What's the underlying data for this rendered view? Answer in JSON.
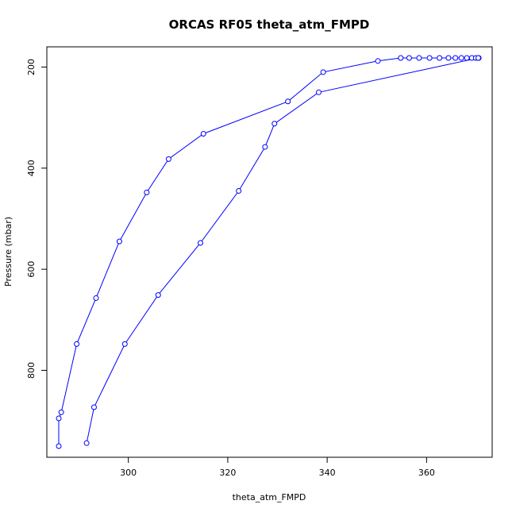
{
  "chart_data": {
    "type": "line",
    "title": "ORCAS RF05 theta_atm_FMPD",
    "xlabel": "theta_atm_FMPD",
    "ylabel": "Pressure (mbar)",
    "xlim": [
      283.6,
      373.2
    ],
    "ylim": [
      972,
      160
    ],
    "y_reversed": true,
    "xticks": [
      300,
      320,
      340,
      360
    ],
    "yticks": [
      200,
      400,
      600,
      800
    ],
    "grid": false,
    "series": [
      {
        "color": "#0000ff",
        "marker": "open-circle",
        "line": true,
        "points": [
          [
            286.0,
            950
          ],
          [
            286.0,
            895
          ],
          [
            286.5,
            883
          ],
          [
            289.6,
            748
          ],
          [
            293.5,
            657
          ],
          [
            298.2,
            545
          ],
          [
            303.7,
            448
          ],
          [
            308.1,
            382
          ],
          [
            315.1,
            332
          ],
          [
            332.1,
            268
          ],
          [
            339.2,
            210
          ],
          [
            350.2,
            188
          ],
          [
            354.8,
            182
          ],
          [
            356.5,
            182
          ],
          [
            358.5,
            182
          ],
          [
            360.6,
            182
          ],
          [
            362.6,
            182
          ],
          [
            364.4,
            182
          ],
          [
            365.8,
            182
          ],
          [
            367.0,
            182
          ],
          [
            368.1,
            182
          ],
          [
            369.1,
            182
          ],
          [
            369.9,
            182
          ],
          [
            370.5,
            182
          ],
          [
            370.4,
            182
          ],
          [
            338.3,
            250
          ],
          [
            329.4,
            312
          ],
          [
            327.5,
            358
          ],
          [
            322.2,
            445
          ],
          [
            314.5,
            548
          ],
          [
            306.0,
            651
          ],
          [
            299.3,
            748
          ],
          [
            293.1,
            873
          ],
          [
            291.6,
            944
          ]
        ]
      }
    ]
  }
}
